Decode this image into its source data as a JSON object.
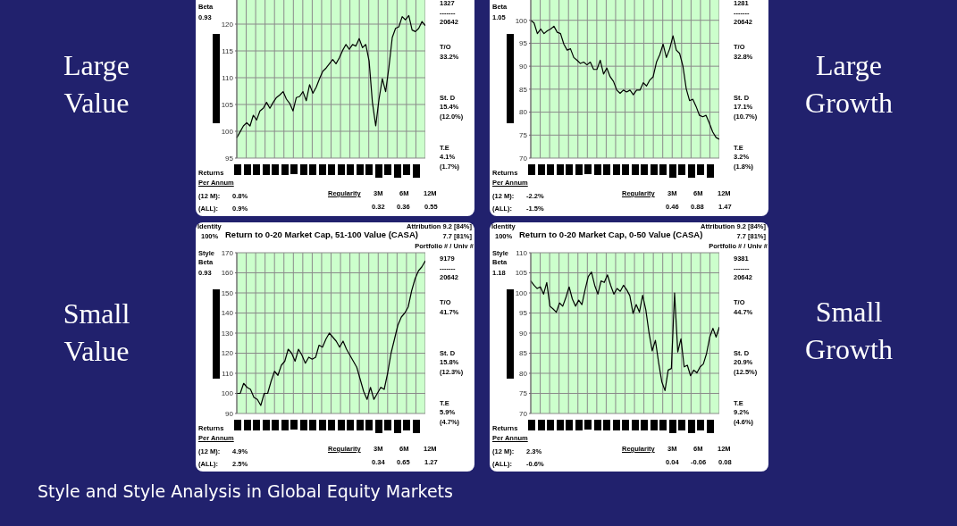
{
  "chart_data": [
    {
      "type": "line",
      "tick_labels": "y",
      "grid": true,
      "color": "#000000",
      "ylim": [
        95,
        125
      ],
      "yticks": [
        95,
        100,
        105,
        110,
        115,
        120
      ],
      "categories": [
        null,
        null,
        null,
        null,
        null,
        null,
        null,
        null,
        null,
        null,
        null,
        null,
        null,
        null,
        null,
        null,
        null,
        null,
        null,
        null,
        null,
        null,
        null,
        null,
        null,
        null,
        null,
        null,
        null,
        null,
        null,
        null,
        null,
        null,
        null,
        null,
        null,
        null,
        null,
        null,
        null,
        null,
        null,
        null,
        null,
        null,
        null,
        null,
        null,
        null,
        null,
        null,
        null,
        null,
        null,
        null,
        null,
        null
      ],
      "values": [
        98.8,
        99.9,
        101.0,
        101.6,
        101.0,
        103.0,
        102.1,
        103.8,
        104.3,
        105.4,
        104.3,
        105.4,
        106.3,
        106.8,
        107.4,
        106.0,
        105.2,
        103.8,
        106.3,
        106.5,
        107.4,
        105.7,
        108.7,
        107.1,
        108.2,
        109.8,
        111.2,
        111.8,
        112.6,
        113.4,
        112.6,
        113.7,
        115.1,
        116.2,
        115.3,
        116.2,
        115.9,
        117.3,
        115.6,
        116.2,
        113.1,
        105.4,
        101.0,
        106.0,
        109.8,
        107.4,
        112.0,
        117.5,
        119.2,
        119.5,
        121.4,
        120.8,
        121.6,
        118.9,
        118.6,
        119.2,
        120.5,
        119.7
      ],
      "annotations": [
        "Beta",
        "0.93",
        "1327",
        "-------",
        "20642",
        "T/O",
        "33.2%",
        "St. D",
        "15.4%",
        "(12.0%)",
        "T.E",
        "4.1%",
        "(1.7%)",
        "Returns",
        "Per Annum",
        "(12 M):",
        "0.8%",
        "(ALL):",
        "0.9%",
        "Regularity",
        "3M",
        "6M",
        "12M",
        "0.32",
        "0.36",
        "0.55"
      ]
    },
    {
      "type": "line",
      "tick_labels": "y",
      "grid": true,
      "color": "#000000",
      "ylim": [
        70,
        105
      ],
      "yticks": [
        70,
        75,
        80,
        85,
        90,
        95,
        100
      ],
      "categories": [
        null,
        null,
        null,
        null,
        null,
        null,
        null,
        null,
        null,
        null,
        null,
        null,
        null,
        null,
        null,
        null,
        null,
        null,
        null,
        null,
        null,
        null,
        null,
        null,
        null,
        null,
        null,
        null,
        null,
        null,
        null,
        null,
        null,
        null,
        null,
        null,
        null,
        null,
        null,
        null,
        null,
        null,
        null,
        null,
        null,
        null,
        null,
        null,
        null,
        null,
        null,
        null,
        null,
        null,
        null,
        null,
        null,
        null
      ],
      "values": [
        100,
        99.4,
        97.1,
        98.1,
        97.1,
        97.7,
        98.1,
        98.7,
        97.4,
        97.1,
        94.8,
        93.5,
        93.8,
        91.9,
        91.3,
        90.6,
        90.9,
        90.3,
        90.9,
        89.3,
        89.3,
        91.3,
        88.3,
        89.6,
        87.7,
        86.7,
        84.8,
        84.1,
        84.8,
        84.4,
        84.8,
        83.8,
        84.8,
        84.8,
        86.4,
        85.7,
        87.0,
        87.7,
        90.9,
        92.5,
        94.8,
        91.9,
        93.8,
        96.6,
        93.5,
        92.8,
        90.0,
        85.1,
        82.5,
        82.8,
        81.2,
        79.3,
        79.0,
        79.3,
        77.6,
        75.7,
        74.5,
        74.1
      ],
      "annotations": [
        "Beta",
        "1.05",
        "1281",
        "-------",
        "20642",
        "T/O",
        "32.8%",
        "St. D",
        "17.1%",
        "(10.7%)",
        "T.E",
        "3.2%",
        "(1.8%)",
        "Returns",
        "Per Annum",
        "(12 M):",
        "-2.2%",
        "(ALL):",
        "-1.5%",
        "Regularity",
        "3M",
        "6M",
        "12M",
        "0.46",
        "0.88",
        "1.47"
      ]
    },
    {
      "type": "line",
      "title": "Return to 0-20 Market Cap, 51-100 Value (CASA)",
      "tick_labels": "y",
      "grid": true,
      "color": "#000000",
      "ylim": [
        90,
        170
      ],
      "yticks": [
        90,
        100,
        110,
        120,
        130,
        140,
        150,
        160,
        170
      ],
      "categories": [
        null,
        null,
        null,
        null,
        null,
        null,
        null,
        null,
        null,
        null,
        null,
        null,
        null,
        null,
        null,
        null,
        null,
        null,
        null,
        null,
        null,
        null,
        null,
        null,
        null,
        null,
        null,
        null,
        null,
        null,
        null,
        null,
        null,
        null,
        null,
        null,
        null,
        null,
        null,
        null,
        null,
        null,
        null,
        null,
        null,
        null,
        null,
        null,
        null,
        null,
        null,
        null,
        null,
        null,
        null,
        null
      ],
      "values": [
        100,
        100,
        105,
        103,
        102,
        98,
        97,
        94,
        100,
        100,
        106,
        111,
        109,
        114,
        116,
        122,
        120,
        116,
        122,
        119,
        115,
        118,
        117,
        118,
        124,
        123,
        127,
        130,
        128,
        126,
        123,
        126,
        122,
        119,
        116,
        113,
        107,
        101,
        97,
        103,
        97,
        100,
        103,
        102,
        110,
        120,
        127,
        134,
        138,
        140,
        143,
        151,
        157,
        161,
        163,
        166
      ],
      "annotations": [
        "Identity",
        "100%",
        "Attribution 9.2 [84%]",
        "7.7 [81%]",
        "Portfolio # / Univ #",
        "Style",
        "Beta",
        "0.93",
        "9179",
        "-------",
        "20642",
        "T/O",
        "41.7%",
        "St. D",
        "15.8%",
        "(12.3%)",
        "T.E",
        "5.9%",
        "(4.7%)",
        "Returns",
        "Per Annum",
        "(12 M):",
        "4.9%",
        "(ALL):",
        "2.5%",
        "Regularity",
        "3M",
        "6M",
        "12M",
        "0.34",
        "0.65",
        "1.27"
      ]
    },
    {
      "type": "line",
      "title": "Return to 0-20 Market Cap, 0-50 Value (CASA)",
      "tick_labels": "y",
      "grid": true,
      "color": "#000000",
      "ylim": [
        70,
        110
      ],
      "yticks": [
        70,
        75,
        80,
        85,
        90,
        95,
        100,
        105,
        110
      ],
      "categories": [
        null,
        null,
        null,
        null,
        null,
        null,
        null,
        null,
        null,
        null,
        null,
        null,
        null,
        null,
        null,
        null,
        null,
        null,
        null,
        null,
        null,
        null,
        null,
        null,
        null,
        null,
        null,
        null,
        null,
        null,
        null,
        null,
        null,
        null,
        null,
        null,
        null,
        null,
        null,
        null,
        null,
        null,
        null,
        null,
        null,
        null,
        null,
        null,
        null,
        null,
        null,
        null,
        null,
        null,
        null,
        null,
        null,
        null,
        null,
        null
      ],
      "values": [
        103.0,
        101.9,
        101.1,
        101.5,
        99.7,
        102.6,
        96.7,
        96.0,
        95.2,
        97.5,
        96.7,
        98.9,
        101.5,
        98.5,
        96.7,
        98.2,
        97.1,
        100.8,
        104.1,
        105.2,
        101.9,
        99.7,
        103.0,
        102.6,
        104.5,
        101.9,
        99.7,
        101.1,
        100.4,
        101.9,
        100.8,
        99.3,
        94.9,
        97.1,
        95.2,
        99.4,
        95.8,
        90.1,
        85.6,
        88.2,
        82.7,
        77.9,
        75.7,
        80.8,
        81.2,
        100.0,
        85.3,
        88.6,
        81.6,
        82.0,
        79.4,
        80.8,
        80.1,
        81.6,
        82.3,
        84.9,
        89.0,
        91.2,
        89.0,
        91.5
      ],
      "annotations": [
        "Identity",
        "100%",
        "Attribution 9.2 [84%]",
        "7.7 [81%]",
        "Portfolio # / Univ #",
        "Style",
        "Beta",
        "1.18",
        "9381",
        "-------",
        "20642",
        "T/O",
        "44.7%",
        "St. D",
        "20.9%",
        "(12.5%)",
        "T.E",
        "9.2%",
        "(4.6%)",
        "Returns",
        "Per Annum",
        "(12 M):",
        "2.3%",
        "(ALL):",
        "-0.6%",
        "Regularity",
        "3M",
        "6M",
        "12M",
        "0.04",
        "-0.06",
        "0.08"
      ]
    },
    {
      "type": "other",
      "annotations": [
        "Large Value",
        "Large Growth",
        "Small Value",
        "Small Growth",
        "Style and Style Analysis in Global Equity Markets"
      ]
    }
  ]
}
